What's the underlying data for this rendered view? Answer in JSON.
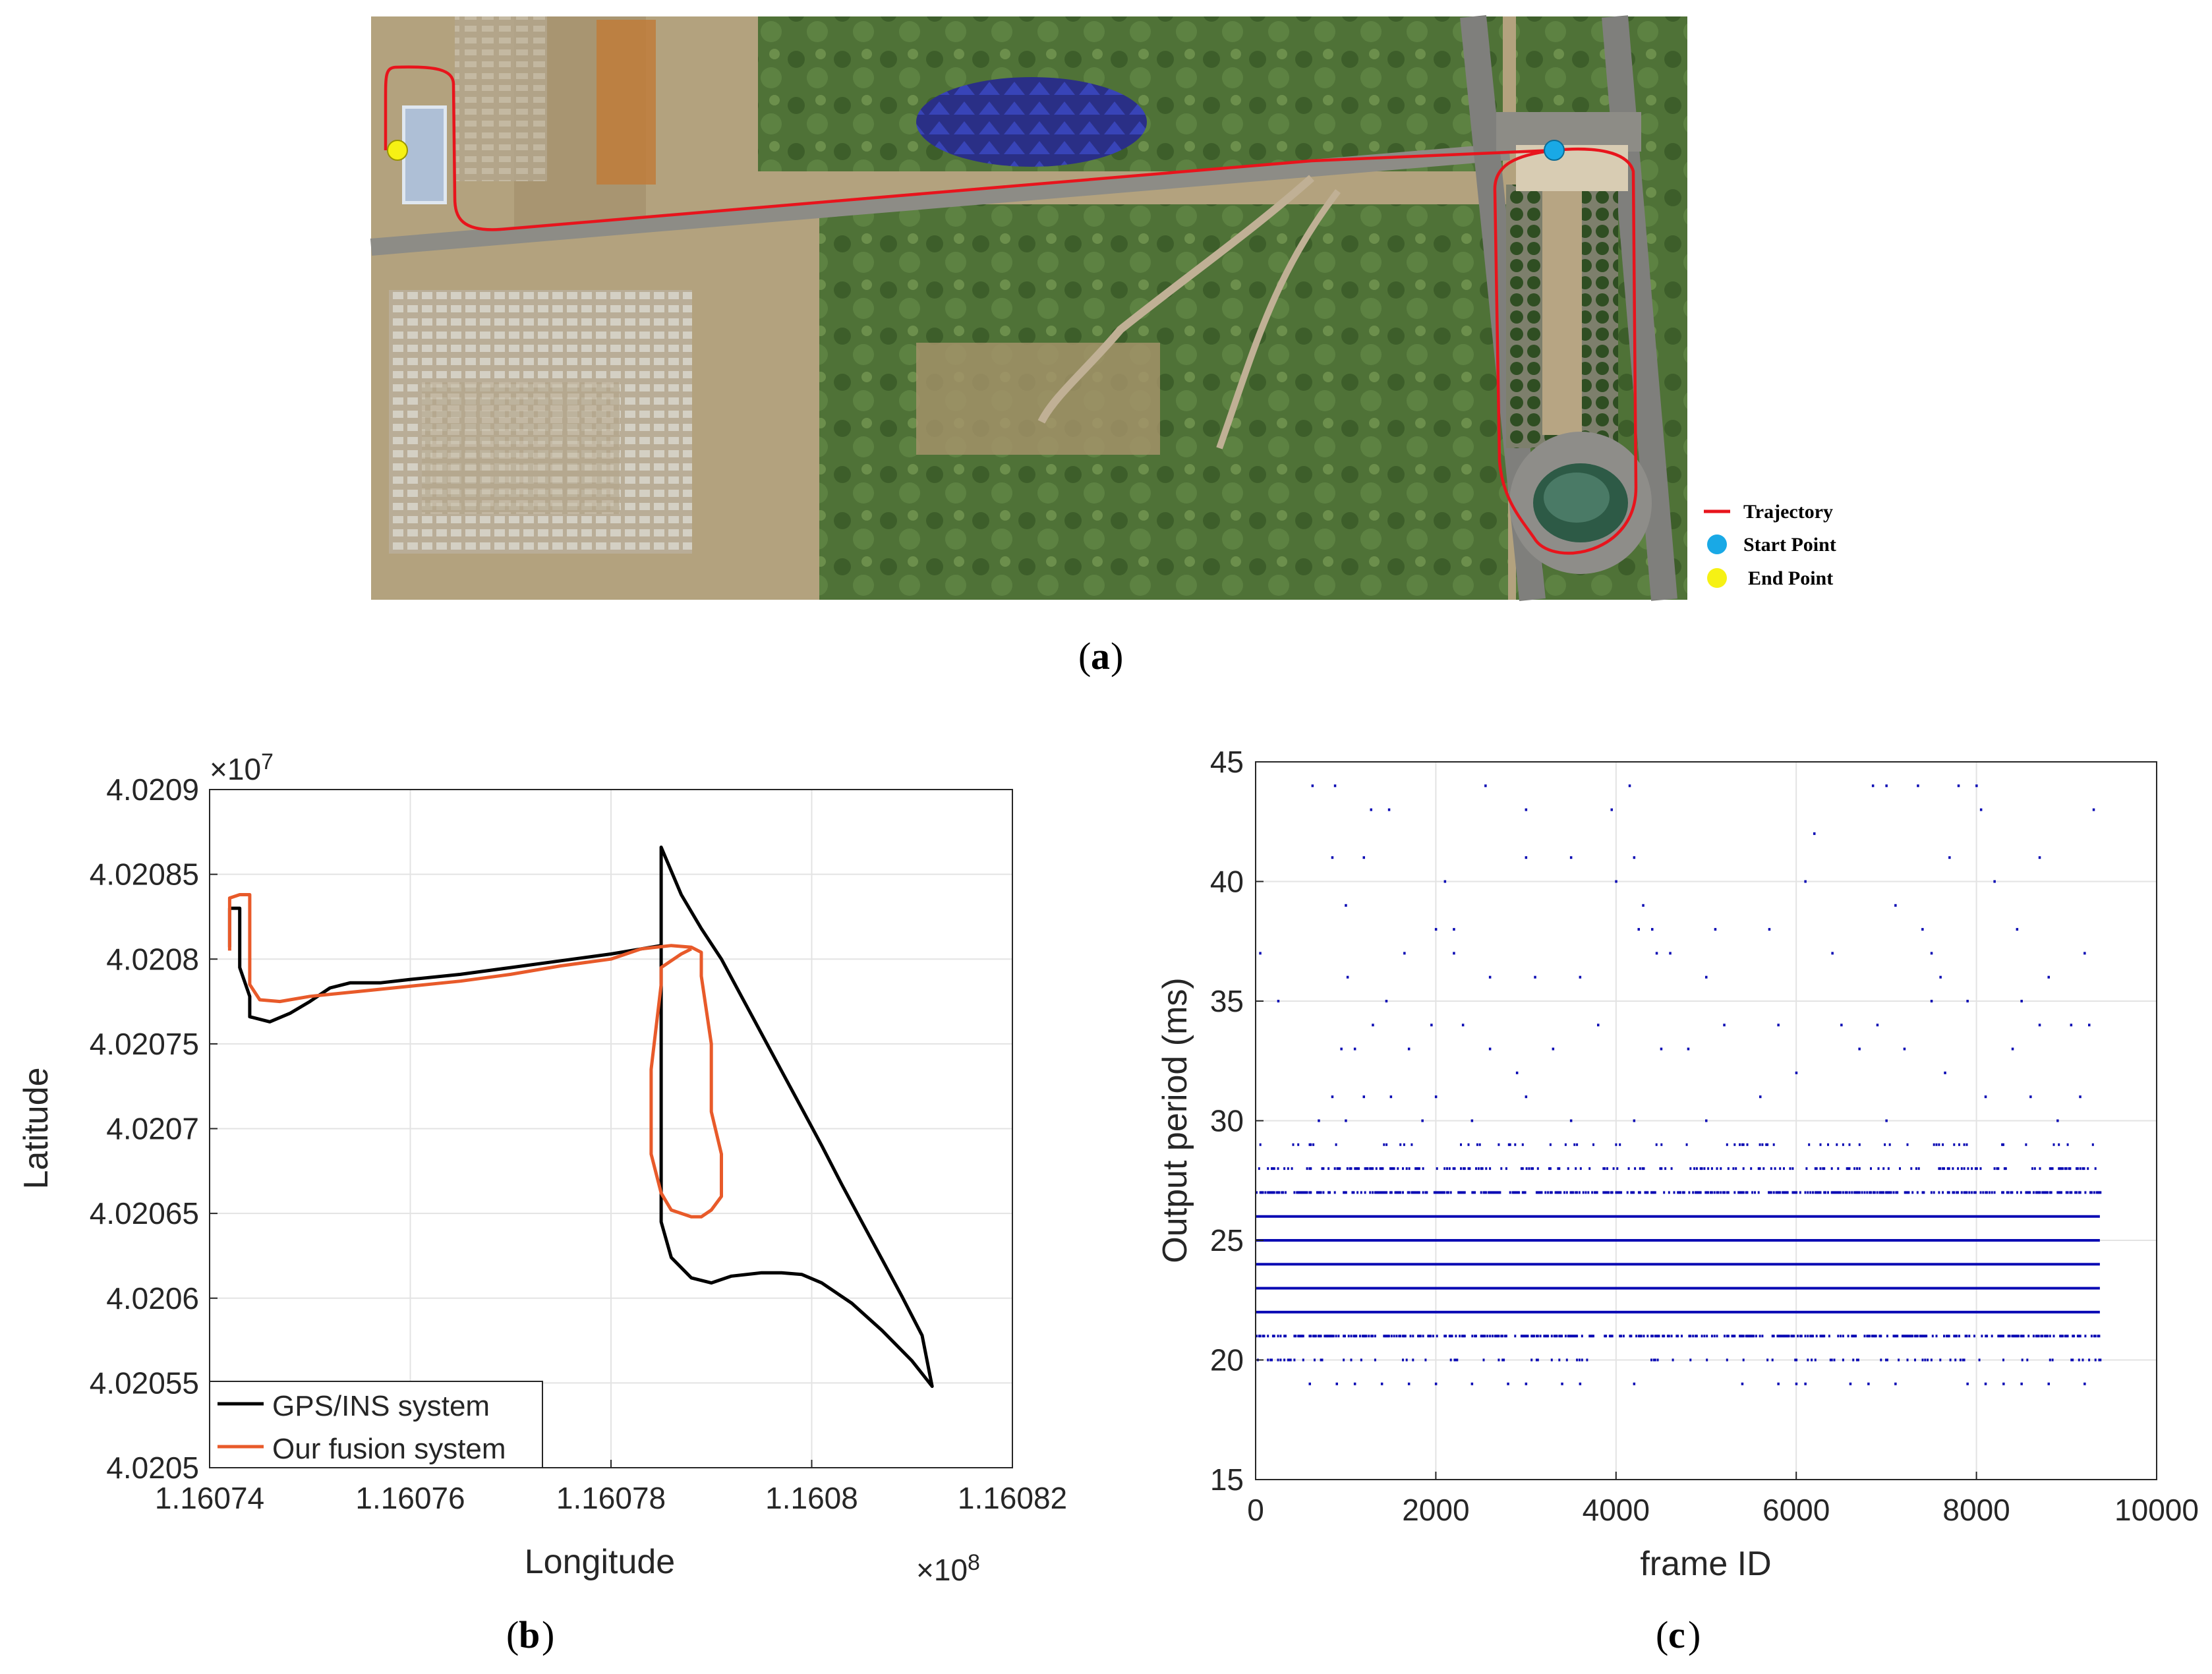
{
  "captions": {
    "a": "a",
    "b": "b",
    "c": "c"
  },
  "map_legend": {
    "trajectory": "Trajectory",
    "start": "Start Point",
    "end": "End Point",
    "colors": {
      "trajectory": "#e8141c",
      "start": "#19a9e6",
      "end": "#f6f114"
    }
  },
  "chart_data": [
    {
      "type": "line",
      "panel": "b",
      "xlabel": "Longitude",
      "ylabel": "Latitude",
      "x_multiplier": "×10^8",
      "y_multiplier": "×10^7",
      "x_exp_text": "8",
      "y_exp_text": "7",
      "xlim": [
        1.16074,
        1.16082
      ],
      "ylim": [
        4.0205,
        4.0209
      ],
      "xticks": [
        1.16074,
        1.16076,
        1.16078,
        1.1608,
        1.16082
      ],
      "xtick_labels": [
        "1.16074",
        "1.16076",
        "1.16078",
        "1.1608",
        "1.16082"
      ],
      "yticks": [
        4.0205,
        4.02055,
        4.0206,
        4.02065,
        4.0207,
        4.02075,
        4.0208,
        4.02085,
        4.0209
      ],
      "ytick_labels": [
        "4.0205",
        "4.02055",
        "4.0206",
        "4.02065",
        "4.0207",
        "4.02075",
        "4.0208",
        "4.02085",
        "4.0209"
      ],
      "grid": true,
      "legend_position": "bottom-left",
      "series": [
        {
          "name": "GPS/INS system",
          "color": "#000000",
          "x": [
            1.160742,
            1.160742,
            1.160742,
            1.160743,
            1.160743,
            1.160743,
            1.160743,
            1.160744,
            1.160744,
            1.160744,
            1.160746,
            1.160748,
            1.16075,
            1.160752,
            1.160754,
            1.160757,
            1.16076,
            1.160765,
            1.16077,
            1.160775,
            1.16078,
            1.160783,
            1.160785,
            1.160785,
            1.160787,
            1.160789,
            1.160791,
            1.160793,
            1.160795,
            1.160797,
            1.160799,
            1.160801,
            1.160803,
            1.160805,
            1.160807,
            1.160809,
            1.160811,
            1.160812,
            1.16081,
            1.160807,
            1.160804,
            1.160801,
            1.160799,
            1.160797,
            1.160795,
            1.160792,
            1.16079,
            1.160788,
            1.160786,
            1.160785,
            1.160785,
            1.160785,
            1.160785,
            1.160785
          ],
          "y": [
            4.020807,
            4.020818,
            4.02083,
            4.02083,
            4.020824,
            4.020812,
            4.020795,
            4.020778,
            4.020772,
            4.020766,
            4.020763,
            4.020768,
            4.020775,
            4.020783,
            4.020786,
            4.020786,
            4.020788,
            4.020791,
            4.020795,
            4.020799,
            4.020803,
            4.020806,
            4.020808,
            4.020866,
            4.020838,
            4.020818,
            4.0208,
            4.020778,
            4.020756,
            4.020734,
            4.020712,
            4.02069,
            4.020667,
            4.020645,
            4.020623,
            4.020601,
            4.020578,
            4.020548,
            4.020563,
            4.020581,
            4.020597,
            4.020609,
            4.020614,
            4.020615,
            4.020615,
            4.020613,
            4.020609,
            4.020612,
            4.020624,
            4.020645,
            4.020685,
            4.020735,
            4.020785,
            4.020808
          ]
        },
        {
          "name": "Our fusion system",
          "color": "#e85a2a",
          "x": [
            1.160742,
            1.160742,
            1.160742,
            1.160743,
            1.160744,
            1.160744,
            1.160744,
            1.160744,
            1.160745,
            1.160747,
            1.16075,
            1.160755,
            1.16076,
            1.160765,
            1.16077,
            1.160775,
            1.16078,
            1.160783,
            1.160786,
            1.160788,
            1.160789,
            1.160789,
            1.16079,
            1.16079,
            1.160791,
            1.160791,
            1.160791,
            1.16079,
            1.160789,
            1.160788,
            1.160786,
            1.160785,
            1.160784,
            1.160784,
            1.160785,
            1.160785,
            1.160787,
            1.160788
          ],
          "y": [
            4.020805,
            4.020825,
            4.020836,
            4.020838,
            4.020838,
            4.02083,
            4.020812,
            4.020785,
            4.020776,
            4.020775,
            4.020778,
            4.020781,
            4.020784,
            4.020787,
            4.020791,
            4.020796,
            4.0208,
            4.020806,
            4.020808,
            4.020807,
            4.020804,
            4.02079,
            4.02075,
            4.02071,
            4.020685,
            4.020668,
            4.02066,
            4.020652,
            4.020648,
            4.020648,
            4.020652,
            4.020662,
            4.020685,
            4.020735,
            4.020785,
            4.020795,
            4.020803,
            4.020806
          ]
        }
      ]
    },
    {
      "type": "scatter",
      "panel": "c",
      "xlabel": "frame ID",
      "ylabel": "Output period (ms)",
      "xlim": [
        0,
        10000
      ],
      "ylim": [
        15,
        45
      ],
      "xticks": [
        0,
        2000,
        4000,
        6000,
        8000,
        10000
      ],
      "yticks": [
        15,
        20,
        25,
        30,
        35,
        40,
        45
      ],
      "grid": true,
      "marker_color": "#0a0ab4",
      "frame_count": 9370,
      "continuous_rows": [
        {
          "y": 22,
          "x_start": 0,
          "x_end": 9370
        },
        {
          "y": 23,
          "x_start": 0,
          "x_end": 9370
        },
        {
          "y": 24,
          "x_start": 0,
          "x_end": 9370
        },
        {
          "y": 25,
          "x_start": 0,
          "x_end": 9370
        },
        {
          "y": 26,
          "x_start": 0,
          "x_end": 9370
        }
      ],
      "dense_rows": [
        {
          "y": 21,
          "density": 0.55
        },
        {
          "y": 27,
          "density": 0.55
        },
        {
          "y": 28,
          "density": 0.28
        },
        {
          "y": 20,
          "density": 0.14
        },
        {
          "y": 29,
          "density": 0.08
        }
      ],
      "points": [
        [
          50,
          37
        ],
        [
          250,
          35
        ],
        [
          630,
          44
        ],
        [
          880,
          44
        ],
        [
          850,
          41
        ],
        [
          1000,
          39
        ],
        [
          1020,
          36
        ],
        [
          1200,
          41
        ],
        [
          1280,
          43
        ],
        [
          1480,
          43
        ],
        [
          1650,
          37
        ],
        [
          2000,
          38
        ],
        [
          2100,
          40
        ],
        [
          2200,
          38
        ],
        [
          2200,
          37
        ],
        [
          2550,
          44
        ],
        [
          2600,
          36
        ],
        [
          3000,
          43
        ],
        [
          3000,
          41
        ],
        [
          3100,
          36
        ],
        [
          3500,
          41
        ],
        [
          3600,
          36
        ],
        [
          3950,
          43
        ],
        [
          4000,
          40
        ],
        [
          4150,
          44
        ],
        [
          4200,
          41
        ],
        [
          4300,
          39
        ],
        [
          4250,
          38
        ],
        [
          4400,
          38
        ],
        [
          4450,
          37
        ],
        [
          4600,
          37
        ],
        [
          5000,
          36
        ],
        [
          5100,
          38
        ],
        [
          5700,
          38
        ],
        [
          6100,
          40
        ],
        [
          6200,
          42
        ],
        [
          6400,
          37
        ],
        [
          6850,
          44
        ],
        [
          7000,
          44
        ],
        [
          7100,
          39
        ],
        [
          7350,
          44
        ],
        [
          7400,
          38
        ],
        [
          7500,
          37
        ],
        [
          7600,
          36
        ],
        [
          7700,
          41
        ],
        [
          7800,
          44
        ],
        [
          8000,
          44
        ],
        [
          8050,
          43
        ],
        [
          8200,
          40
        ],
        [
          8450,
          38
        ],
        [
          8700,
          41
        ],
        [
          9200,
          37
        ],
        [
          9300,
          43
        ],
        [
          8800,
          36
        ],
        [
          8500,
          35
        ],
        [
          7900,
          35
        ],
        [
          7500,
          35
        ],
        [
          6900,
          34
        ],
        [
          6500,
          34
        ],
        [
          5800,
          34
        ],
        [
          5200,
          34
        ],
        [
          4800,
          33
        ],
        [
          4500,
          33
        ],
        [
          3800,
          34
        ],
        [
          3300,
          33
        ],
        [
          2900,
          32
        ],
        [
          2600,
          33
        ],
        [
          2300,
          34
        ],
        [
          1950,
          34
        ],
        [
          1700,
          33
        ],
        [
          1450,
          35
        ],
        [
          1300,
          34
        ],
        [
          1100,
          33
        ],
        [
          950,
          33
        ],
        [
          850,
          31
        ],
        [
          700,
          30
        ],
        [
          600,
          29
        ],
        [
          8700,
          34
        ],
        [
          9050,
          34
        ],
        [
          9250,
          34
        ],
        [
          8400,
          33
        ],
        [
          7200,
          33
        ],
        [
          6700,
          33
        ],
        [
          6000,
          32
        ],
        [
          5600,
          31
        ],
        [
          5000,
          30
        ],
        [
          3500,
          30
        ],
        [
          3000,
          31
        ],
        [
          2000,
          31
        ],
        [
          1500,
          31
        ],
        [
          1200,
          31
        ],
        [
          9150,
          31
        ],
        [
          8600,
          31
        ],
        [
          8100,
          31
        ],
        [
          7650,
          32
        ],
        [
          8900,
          30
        ],
        [
          7000,
          30
        ],
        [
          4200,
          30
        ],
        [
          2400,
          30
        ],
        [
          1850,
          30
        ],
        [
          1000,
          30
        ],
        [
          600,
          19
        ],
        [
          900,
          19
        ],
        [
          1100,
          19
        ],
        [
          1400,
          19
        ],
        [
          1700,
          19
        ],
        [
          2000,
          19
        ],
        [
          2400,
          19
        ],
        [
          2800,
          19
        ],
        [
          3000,
          19
        ],
        [
          3400,
          19
        ],
        [
          3600,
          19
        ],
        [
          4200,
          19
        ],
        [
          5400,
          19
        ],
        [
          5800,
          19
        ],
        [
          6000,
          19
        ],
        [
          6100,
          19
        ],
        [
          6600,
          19
        ],
        [
          6800,
          19
        ],
        [
          7100,
          19
        ],
        [
          7900,
          19
        ],
        [
          8100,
          19
        ],
        [
          8300,
          19
        ],
        [
          8500,
          19
        ],
        [
          8800,
          19
        ],
        [
          9200,
          19
        ]
      ]
    }
  ]
}
